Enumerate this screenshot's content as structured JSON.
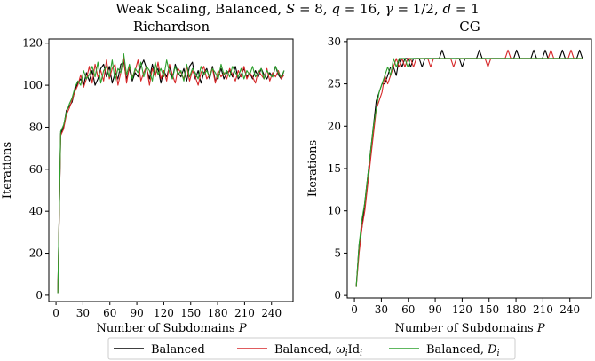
{
  "figure": {
    "suptitle": "Weak Scaling, Balanced, S = 8, q = 16, γ = 1/2, d = 1",
    "suptitle_parts": {
      "a": "Weak Scaling, Balanced, ",
      "S": "S",
      "eq_S": " = 8, ",
      "q": "q",
      "eq_q": " = 16, ",
      "gamma": "γ",
      "eq_gamma": " = 1/2, ",
      "d": "d",
      "eq_d": " = 1"
    }
  },
  "legend": {
    "items": [
      {
        "label": "Balanced",
        "color": "#000000"
      },
      {
        "label": "Balanced, ωᵢIdᵢ",
        "color": "#d62728"
      },
      {
        "label": "Balanced, Dᵢ",
        "color": "#2ca02c"
      }
    ],
    "label_parts": {
      "l0": "Balanced",
      "l1_a": "Balanced, ",
      "l1_w": "ω",
      "l1_i1": "i",
      "l1_id": "Id",
      "l1_i2": "i",
      "l2_a": "Balanced, ",
      "l2_D": "D",
      "l2_i": "i"
    }
  },
  "chart_data": [
    {
      "type": "line",
      "title": "Richardson",
      "xlabel": "Number of Subdomains P",
      "xlabel_parts": {
        "a": "Number of Subdomains ",
        "P": "P"
      },
      "ylabel": "Iterations",
      "xlim": [
        -8,
        264
      ],
      "ylim": [
        -3,
        122
      ],
      "xticks": [
        0,
        30,
        60,
        90,
        120,
        150,
        180,
        210,
        240
      ],
      "yticks": [
        0,
        20,
        40,
        60,
        80,
        100,
        120
      ],
      "series": [
        {
          "name": "Balanced",
          "color": "#000000",
          "start": 2,
          "values": [
            1,
            77,
            80,
            88,
            90,
            92,
            98,
            101,
            103,
            100,
            106,
            102,
            107,
            100,
            103,
            108,
            110,
            104,
            109,
            101,
            106,
            103,
            110,
            111,
            103,
            108,
            102,
            106,
            104,
            109,
            112,
            108,
            103,
            110,
            105,
            108,
            101,
            107,
            104,
            109,
            103,
            110,
            106,
            104,
            108,
            102,
            109,
            111,
            103,
            107,
            101,
            106,
            108,
            103,
            109,
            102,
            104,
            108,
            103,
            106,
            107,
            104,
            109,
            103,
            105,
            108,
            104,
            106,
            103,
            107,
            104,
            108,
            105,
            103,
            106,
            104,
            109,
            105,
            103,
            107
          ]
        },
        {
          "name": "Balanced, ωᵢIdᵢ",
          "color": "#d62728",
          "start": 2,
          "values": [
            1,
            76,
            79,
            86,
            89,
            93,
            97,
            100,
            105,
            99,
            103,
            109,
            101,
            110,
            104,
            107,
            102,
            112,
            103,
            108,
            110,
            100,
            106,
            113,
            101,
            109,
            104,
            107,
            112,
            102,
            106,
            109,
            100,
            108,
            104,
            111,
            103,
            107,
            102,
            110,
            105,
            101,
            108,
            106,
            103,
            109,
            102,
            107,
            104,
            100,
            106,
            109,
            103,
            105,
            108,
            101,
            107,
            104,
            106,
            103,
            108,
            105,
            102,
            107,
            104,
            109,
            103,
            106,
            104,
            101,
            107,
            105,
            103,
            108,
            102,
            106,
            104,
            107,
            103,
            105
          ]
        },
        {
          "name": "Balanced, Dᵢ",
          "color": "#2ca02c",
          "start": 2,
          "values": [
            1,
            78,
            81,
            87,
            91,
            94,
            99,
            102,
            100,
            107,
            103,
            105,
            109,
            104,
            111,
            101,
            107,
            109,
            104,
            112,
            102,
            108,
            106,
            115,
            105,
            110,
            103,
            108,
            106,
            111,
            104,
            109,
            107,
            102,
            111,
            105,
            108,
            104,
            112,
            106,
            103,
            109,
            105,
            107,
            102,
            110,
            104,
            108,
            106,
            103,
            109,
            105,
            107,
            104,
            108,
            106,
            103,
            110,
            105,
            107,
            104,
            109,
            106,
            104,
            108,
            103,
            107,
            105,
            109,
            104,
            106,
            108,
            103,
            107,
            105,
            104,
            109,
            106,
            104,
            107
          ]
        }
      ]
    },
    {
      "type": "line",
      "title": "CG",
      "xlabel": "Number of Subdomains P",
      "xlabel_parts": {
        "a": "Number of Subdomains ",
        "P": "P"
      },
      "ylabel": "Iterations",
      "xlim": [
        -8,
        264
      ],
      "ylim": [
        -0.3,
        30.3
      ],
      "xticks": [
        0,
        30,
        60,
        90,
        120,
        150,
        180,
        210,
        240
      ],
      "yticks": [
        0,
        5,
        10,
        15,
        20,
        25,
        30
      ],
      "series": [
        {
          "name": "Balanced",
          "color": "#000000",
          "start": 2,
          "values": [
            1,
            6,
            8,
            11,
            14,
            17,
            20,
            23,
            24,
            25,
            25,
            26,
            27,
            27,
            26,
            28,
            27,
            28,
            28,
            27,
            28,
            28,
            28,
            27,
            28,
            28,
            28,
            28,
            28,
            28,
            29,
            28,
            28,
            28,
            28,
            28,
            28,
            27,
            28,
            28,
            28,
            28,
            28,
            29,
            28,
            28,
            28,
            28,
            28,
            28,
            28,
            28,
            28,
            28,
            28,
            28,
            29,
            28,
            28,
            28,
            28,
            28,
            29,
            28,
            28,
            28,
            29,
            28,
            28,
            28,
            28,
            28,
            29,
            28,
            28,
            28,
            28,
            28,
            29,
            28
          ]
        },
        {
          "name": "Balanced, ωᵢIdᵢ",
          "color": "#d62728",
          "start": 2,
          "values": [
            1,
            5,
            8,
            10,
            13,
            16,
            19,
            22,
            23,
            24,
            26,
            25,
            26,
            27,
            28,
            27,
            28,
            27,
            28,
            28,
            27,
            28,
            28,
            28,
            28,
            28,
            27,
            28,
            28,
            28,
            28,
            28,
            28,
            28,
            27,
            28,
            28,
            28,
            28,
            28,
            28,
            28,
            28,
            28,
            28,
            28,
            27,
            28,
            28,
            28,
            28,
            28,
            28,
            29,
            28,
            28,
            28,
            28,
            28,
            28,
            28,
            28,
            28,
            28,
            28,
            28,
            28,
            28,
            29,
            28,
            28,
            28,
            28,
            28,
            28,
            29,
            28,
            28,
            28,
            28
          ]
        },
        {
          "name": "Balanced, Dᵢ",
          "color": "#2ca02c",
          "start": 2,
          "values": [
            1,
            6,
            9,
            11,
            14,
            17,
            20,
            22,
            24,
            25,
            26,
            27,
            26,
            28,
            27,
            28,
            28,
            28,
            27,
            28,
            28,
            28,
            28,
            28,
            28,
            28,
            28,
            28,
            28,
            28,
            28,
            28,
            28,
            28,
            28,
            28,
            28,
            28,
            28,
            28,
            28,
            28,
            28,
            28,
            28,
            28,
            28,
            28,
            28,
            28,
            28,
            28,
            28,
            28,
            28,
            28,
            28,
            28,
            28,
            28,
            28,
            28,
            28,
            28,
            28,
            28,
            28,
            28,
            28,
            28,
            28,
            28,
            28,
            28,
            28,
            28,
            28,
            28,
            28,
            28
          ]
        }
      ]
    }
  ]
}
